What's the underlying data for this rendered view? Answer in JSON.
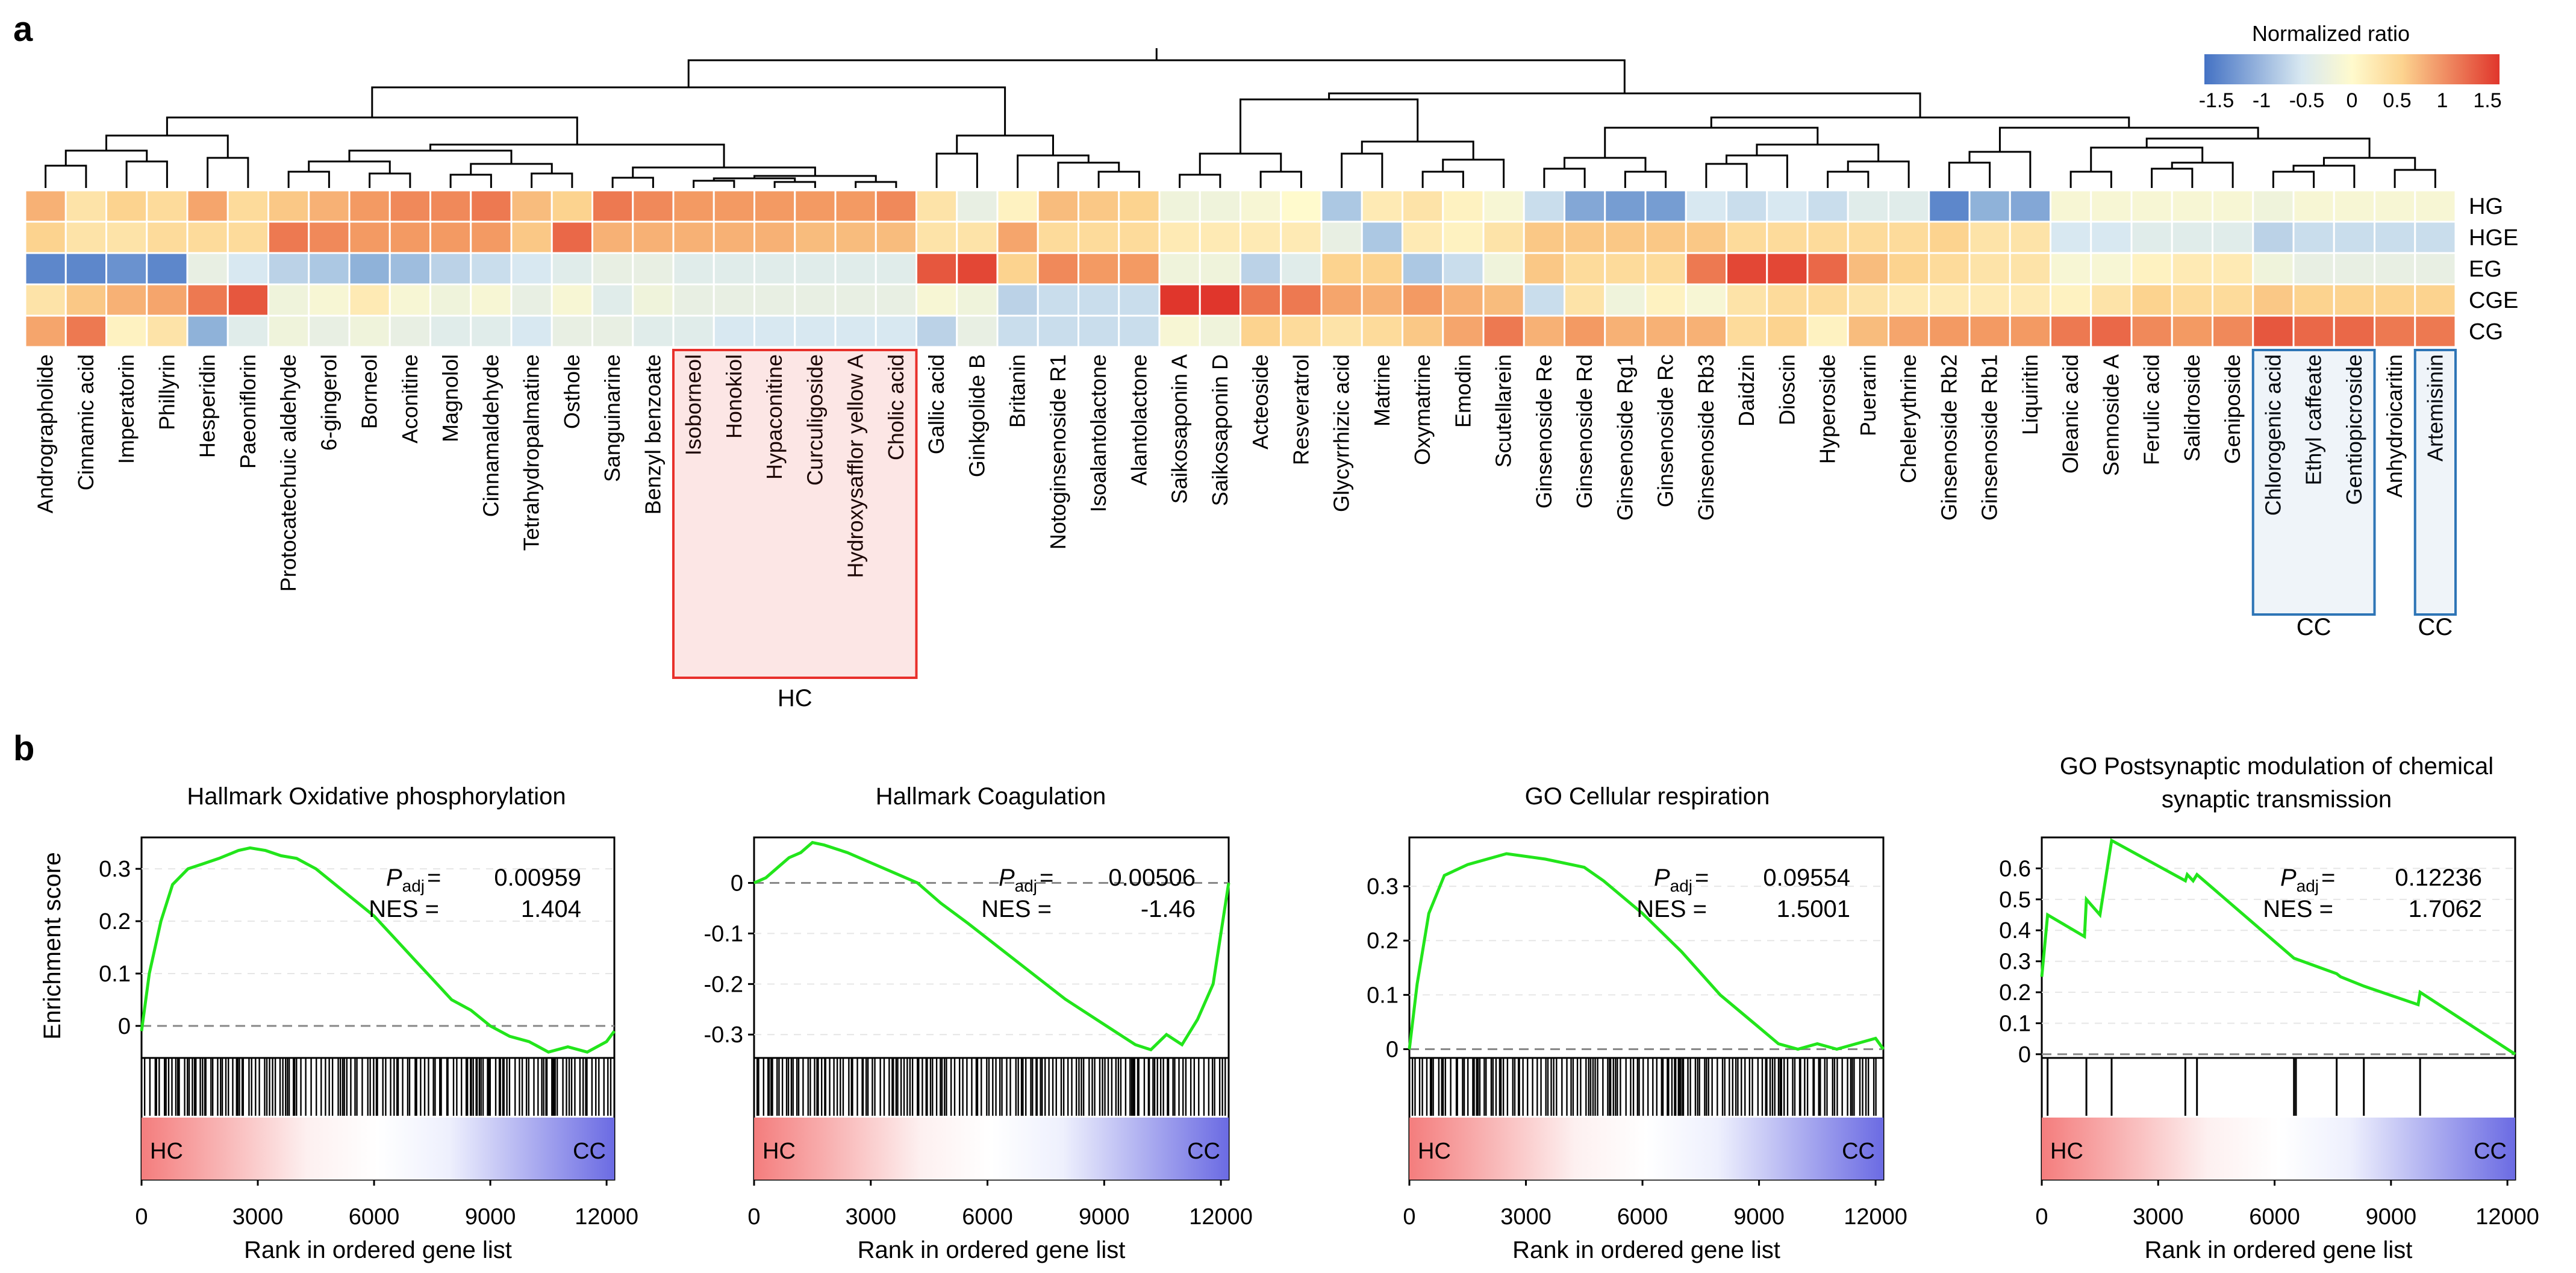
{
  "panel_labels": {
    "a": "a",
    "b": "b"
  },
  "legend": {
    "title": "Normalized ratio",
    "ticks": [
      "-1.5",
      "-1",
      "-0.5",
      "0",
      "0.5",
      "1",
      "1.5"
    ]
  },
  "heatmap": {
    "rows": [
      "HG",
      "HGE",
      "EG",
      "CGE",
      "CG"
    ],
    "compounds": [
      "Andrographolide",
      "Cinnamic acid",
      "Imperatorin",
      "Phillyrin",
      "Hesperidin",
      "Paeoniflorin",
      "Protocatechuic aldehyde",
      "6-gingerol",
      "Borneol",
      "Aconitine",
      "Magnolol",
      "Cinnamaldehyde",
      "Tetrahydropalmatine",
      "Osthole",
      "Sanguinarine",
      "Benzyl benzoate",
      "Isoborneol",
      "Honokiol",
      "Hypaconitine",
      "Curculigoside",
      "Hydroxysafflor yellow A",
      "Cholic acid",
      "Gallic acid",
      "Ginkgolide B",
      "Britanin",
      "Notoginsenoside R1",
      "Isoalantolactone",
      "Alantolactone",
      "Saikosaponin A",
      "Saikosaponin D",
      "Acteoside",
      "Resveratrol",
      "Glycyrrhizic acid",
      "Matrine",
      "Oxymatrine",
      "Emodin",
      "Scutellarein",
      "Ginsenoside Re",
      "Ginsenoside Rd",
      "Ginsenoside Rg1",
      "Ginsenoside Rc",
      "Ginsenoside Rb3",
      "Daidzin",
      "Dioscin",
      "Hyperoside",
      "Puerarin",
      "Chelerythrine",
      "Ginsenoside Rb2",
      "Ginsenoside Rb1",
      "Liquiritin",
      "Oleanic acid",
      "Sennoside A",
      "Ferulic acid",
      "Salidroside",
      "Geniposide",
      "Chlorogenic acid",
      "Ethyl caffeate",
      "Gentiopicroside",
      "Anhydroicaritin",
      "Artemisinin"
    ],
    "values": [
      [
        0.8,
        0.3,
        0.5,
        0.4,
        0.9,
        0.4,
        0.6,
        0.8,
        1.0,
        1.1,
        1.1,
        1.2,
        0.7,
        0.5,
        1.2,
        1.1,
        1.0,
        1.0,
        1.0,
        1.0,
        1.0,
        1.1,
        0.3,
        -0.3,
        0.1,
        0.7,
        0.6,
        0.5,
        -0.2,
        -0.2,
        -0.1,
        0.0,
        -0.8,
        0.2,
        0.3,
        0.1,
        -0.1,
        -0.6,
        -1.1,
        -1.2,
        -1.2,
        -0.5,
        -0.6,
        -0.5,
        -0.6,
        -0.4,
        -0.4,
        -1.4,
        -1.0,
        -1.1,
        -0.1,
        -0.1,
        -0.1,
        -0.1,
        -0.1,
        -0.2,
        -0.1,
        -0.1,
        -0.1,
        -0.1
      ],
      [
        0.5,
        0.3,
        0.3,
        0.4,
        0.4,
        0.4,
        1.2,
        1.1,
        1.0,
        1.0,
        1.0,
        1.0,
        0.6,
        1.3,
        0.8,
        0.8,
        0.8,
        0.8,
        0.8,
        0.7,
        0.7,
        0.7,
        0.3,
        0.3,
        0.9,
        0.4,
        0.4,
        0.4,
        0.2,
        0.2,
        0.2,
        0.2,
        -0.3,
        -0.8,
        0.2,
        0.1,
        0.3,
        0.6,
        0.6,
        0.6,
        0.6,
        0.6,
        0.4,
        0.4,
        0.4,
        0.4,
        0.4,
        0.5,
        0.3,
        0.3,
        -0.5,
        -0.5,
        -0.4,
        -0.4,
        -0.4,
        -0.7,
        -0.6,
        -0.6,
        -0.6,
        -0.6
      ],
      [
        -1.4,
        -1.4,
        -1.3,
        -1.4,
        -0.3,
        -0.5,
        -0.7,
        -0.8,
        -1.0,
        -0.9,
        -0.7,
        -0.6,
        -0.5,
        -0.4,
        -0.3,
        -0.3,
        -0.4,
        -0.4,
        -0.4,
        -0.4,
        -0.4,
        -0.4,
        1.4,
        1.5,
        0.5,
        1.1,
        1.0,
        1.0,
        -0.2,
        -0.2,
        -0.7,
        -0.4,
        0.5,
        0.5,
        -0.8,
        -0.6,
        -0.2,
        0.6,
        0.4,
        0.4,
        0.4,
        1.2,
        1.5,
        1.5,
        1.3,
        0.7,
        0.5,
        0.4,
        0.3,
        0.3,
        -0.1,
        -0.1,
        0.1,
        0.2,
        0.2,
        -0.2,
        -0.3,
        -0.3,
        -0.3,
        -0.3
      ],
      [
        0.3,
        0.6,
        0.8,
        0.9,
        1.2,
        1.4,
        -0.2,
        -0.1,
        0.2,
        -0.1,
        -0.2,
        -0.1,
        -0.3,
        -0.1,
        -0.4,
        -0.2,
        -0.3,
        -0.3,
        -0.3,
        -0.3,
        -0.3,
        -0.3,
        -0.1,
        -0.2,
        -0.7,
        -0.6,
        -0.6,
        -0.6,
        1.6,
        1.6,
        1.2,
        1.2,
        0.9,
        0.8,
        1.0,
        0.8,
        0.7,
        -0.6,
        0.3,
        -0.2,
        0.1,
        -0.1,
        0.3,
        0.4,
        0.4,
        0.3,
        0.2,
        0.2,
        0.2,
        0.2,
        0.1,
        0.3,
        0.5,
        0.4,
        0.4,
        0.6,
        0.5,
        0.5,
        0.5,
        0.5
      ],
      [
        0.9,
        1.2,
        0.1,
        0.3,
        -1.0,
        -0.4,
        -0.2,
        -0.3,
        -0.2,
        -0.3,
        -0.4,
        -0.4,
        -0.5,
        -0.3,
        -0.3,
        -0.4,
        -0.4,
        -0.5,
        -0.5,
        -0.5,
        -0.5,
        -0.5,
        -0.7,
        -0.3,
        -0.6,
        -0.6,
        -0.6,
        -0.6,
        -0.1,
        -0.2,
        0.5,
        0.4,
        0.3,
        0.4,
        0.6,
        0.9,
        1.2,
        0.8,
        1.0,
        0.8,
        0.8,
        0.8,
        0.4,
        0.5,
        0.1,
        0.7,
        0.9,
        1.0,
        1.0,
        1.0,
        1.2,
        1.3,
        1.1,
        1.0,
        1.1,
        1.4,
        1.3,
        1.3,
        1.2,
        1.2
      ]
    ],
    "groups": [
      {
        "label": "HC",
        "color": "#e8302b"
      },
      {
        "label": "CC",
        "color": "#2e75b6"
      },
      {
        "label": "CC",
        "color": "#2e75b6"
      }
    ]
  },
  "colors": {
    "hc_box": "#e8302b",
    "cc_box": "#2e75b6",
    "curve": "#22e51b",
    "heat_low": "#4472c4",
    "heat_mid": "#fffacd",
    "heat_high": "#e0362c"
  },
  "chart_data": [
    {
      "type": "line",
      "title": "Hallmark Oxidative phosphorylation",
      "ylabel": "Enrichment score",
      "xlabel": "Rank in ordered gene list",
      "ylim": [
        -0.06,
        0.36
      ],
      "yticks": [
        "0",
        "0.1",
        "0.2",
        "0.3"
      ],
      "xlim": [
        0,
        12200
      ],
      "xticks": [
        "0",
        "3000",
        "6000",
        "9000",
        "12000"
      ],
      "padj_label": "P",
      "padj_sub": "adj",
      "padj": "0.00959",
      "nes_label": "NES",
      "nes": "1.404",
      "curve": [
        [
          0,
          -0.01
        ],
        [
          200,
          0.1
        ],
        [
          500,
          0.2
        ],
        [
          800,
          0.27
        ],
        [
          1200,
          0.3
        ],
        [
          1600,
          0.31
        ],
        [
          2000,
          0.32
        ],
        [
          2500,
          0.335
        ],
        [
          2800,
          0.34
        ],
        [
          3200,
          0.335
        ],
        [
          3600,
          0.325
        ],
        [
          4000,
          0.32
        ],
        [
          4500,
          0.3
        ],
        [
          5000,
          0.27
        ],
        [
          5500,
          0.24
        ],
        [
          6000,
          0.21
        ],
        [
          6500,
          0.17
        ],
        [
          7000,
          0.13
        ],
        [
          7500,
          0.09
        ],
        [
          8000,
          0.05
        ],
        [
          8500,
          0.03
        ],
        [
          9000,
          0.0
        ],
        [
          9500,
          -0.02
        ],
        [
          10000,
          -0.03
        ],
        [
          10500,
          -0.05
        ],
        [
          11000,
          -0.04
        ],
        [
          11500,
          -0.05
        ],
        [
          12000,
          -0.03
        ],
        [
          12200,
          -0.01
        ]
      ],
      "hit_density": "dense",
      "gradient_left": "HC",
      "gradient_right": "CC"
    },
    {
      "type": "line",
      "title": "Hallmark Coagulation",
      "ylabel": "",
      "xlabel": "Rank in ordered gene list",
      "ylim": [
        -0.345,
        0.09
      ],
      "yticks": [
        "-0.3",
        "-0.2",
        "-0.1",
        "0"
      ],
      "xlim": [
        0,
        12200
      ],
      "xticks": [
        "0",
        "3000",
        "6000",
        "9000",
        "12000"
      ],
      "padj_label": "P",
      "padj_sub": "adj",
      "padj": "0.00506",
      "nes_label": "NES",
      "nes": "-1.46",
      "curve": [
        [
          0,
          0.0
        ],
        [
          300,
          0.01
        ],
        [
          600,
          0.03
        ],
        [
          900,
          0.05
        ],
        [
          1200,
          0.06
        ],
        [
          1500,
          0.08
        ],
        [
          1800,
          0.075
        ],
        [
          2400,
          0.06
        ],
        [
          3000,
          0.04
        ],
        [
          3600,
          0.02
        ],
        [
          4200,
          0.0
        ],
        [
          4800,
          -0.04
        ],
        [
          5500,
          -0.08
        ],
        [
          6000,
          -0.11
        ],
        [
          7000,
          -0.17
        ],
        [
          8000,
          -0.23
        ],
        [
          9000,
          -0.28
        ],
        [
          9800,
          -0.32
        ],
        [
          10200,
          -0.33
        ],
        [
          10600,
          -0.3
        ],
        [
          11000,
          -0.32
        ],
        [
          11400,
          -0.27
        ],
        [
          11800,
          -0.2
        ],
        [
          12000,
          -0.1
        ],
        [
          12200,
          0.0
        ]
      ],
      "hit_density": "dense",
      "gradient_left": "HC",
      "gradient_right": "CC"
    },
    {
      "type": "line",
      "title": "GO Cellular respiration",
      "ylabel": "",
      "xlabel": "Rank in ordered gene list",
      "ylim": [
        -0.015,
        0.39
      ],
      "yticks": [
        "0",
        "0.1",
        "0.2",
        "0.3"
      ],
      "xlim": [
        0,
        12200
      ],
      "xticks": [
        "0",
        "3000",
        "6000",
        "9000",
        "12000"
      ],
      "padj_label": "P",
      "padj_sub": "adj",
      "padj": "0.09554",
      "nes_label": "NES",
      "nes": "1.5001",
      "curve": [
        [
          0,
          0.0
        ],
        [
          200,
          0.12
        ],
        [
          500,
          0.25
        ],
        [
          900,
          0.32
        ],
        [
          1500,
          0.34
        ],
        [
          2500,
          0.36
        ],
        [
          3500,
          0.35
        ],
        [
          4500,
          0.335
        ],
        [
          5000,
          0.31
        ],
        [
          6000,
          0.25
        ],
        [
          7000,
          0.18
        ],
        [
          8000,
          0.1
        ],
        [
          9000,
          0.04
        ],
        [
          9500,
          0.01
        ],
        [
          10000,
          0.0
        ],
        [
          10500,
          0.01
        ],
        [
          11000,
          0.0
        ],
        [
          11500,
          0.01
        ],
        [
          12000,
          0.02
        ],
        [
          12200,
          0.0
        ]
      ],
      "hit_density": "dense",
      "gradient_left": "HC",
      "gradient_right": "CC"
    },
    {
      "type": "line",
      "title": "GO Postsynaptic modulation of chemical synaptic transmission",
      "ylabel": "",
      "xlabel": "Rank in ordered gene list",
      "ylim": [
        -0.01,
        0.7
      ],
      "yticks": [
        "0",
        "0.1",
        "0.2",
        "0.3",
        "0.4",
        "0.5",
        "0.6"
      ],
      "xlim": [
        0,
        12200
      ],
      "xticks": [
        "0",
        "3000",
        "6000",
        "9000",
        "12000"
      ],
      "padj_label": "P",
      "padj_sub": "adj",
      "padj": "0.12236",
      "nes_label": "NES",
      "nes": "1.7062",
      "curve": [
        [
          0,
          0.25
        ],
        [
          150,
          0.45
        ],
        [
          1100,
          0.38
        ],
        [
          1150,
          0.5
        ],
        [
          1500,
          0.45
        ],
        [
          1800,
          0.69
        ],
        [
          3700,
          0.56
        ],
        [
          3750,
          0.58
        ],
        [
          3900,
          0.56
        ],
        [
          4000,
          0.58
        ],
        [
          6500,
          0.31
        ],
        [
          7600,
          0.26
        ],
        [
          7700,
          0.25
        ],
        [
          8300,
          0.22
        ],
        [
          9700,
          0.16
        ],
        [
          9750,
          0.2
        ],
        [
          12200,
          0.0
        ]
      ],
      "hits": [
        150,
        1150,
        1800,
        3700,
        4000,
        6500,
        6550,
        7600,
        8300,
        9750
      ],
      "hit_density": "sparse",
      "gradient_left": "HC",
      "gradient_right": "CC"
    }
  ]
}
